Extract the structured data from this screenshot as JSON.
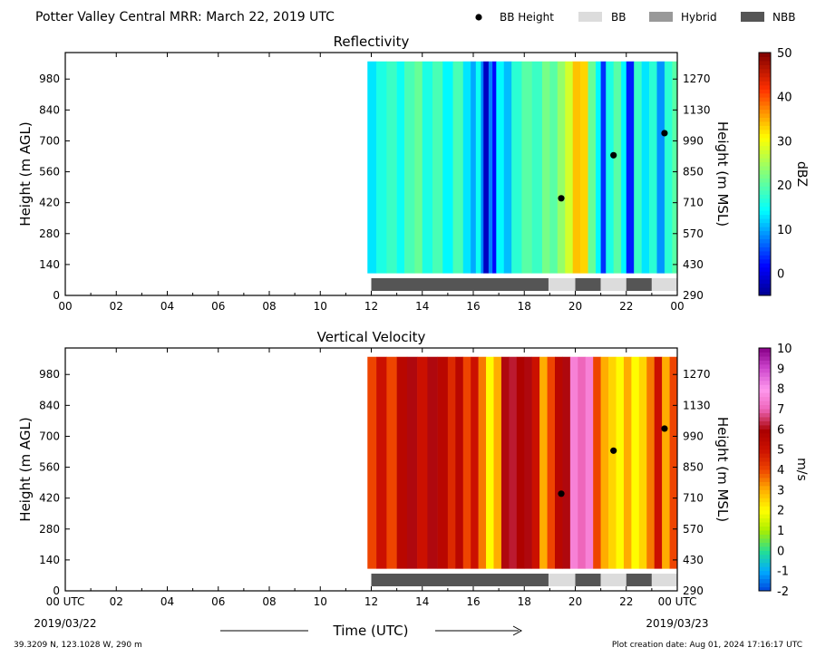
{
  "header": {
    "title": "Potter Valley Central MRR:  March 22, 2019 UTC",
    "legend": [
      {
        "label": "BB Height",
        "kind": "dot",
        "color": "#000000"
      },
      {
        "label": "BB",
        "kind": "box",
        "color": "#dcdcdc"
      },
      {
        "label": "Hybrid",
        "kind": "box",
        "color": "#999999"
      },
      {
        "label": "NBB",
        "kind": "box",
        "color": "#555555"
      }
    ]
  },
  "footer": {
    "location": "39.3209 N, 123.1028 W, 290 m",
    "created": "Plot creation date: Aug 01, 2024 17:16:17 UTC",
    "xlabel": "Time (UTC)",
    "start_tick": "00 UTC",
    "start_date": "2019/03/22",
    "end_tick": "00 UTC",
    "end_date": "2019/03/23"
  },
  "chart_data": [
    {
      "type": "heatmap",
      "title": "Reflectivity",
      "xlabel": "",
      "ylabel": "Height (m AGL)",
      "ylabel_right": "Height (m MSL)",
      "xlim": [
        0,
        24
      ],
      "ylim": [
        0,
        1100
      ],
      "x_ticks": [
        "00",
        "02",
        "04",
        "06",
        "08",
        "10",
        "12",
        "14",
        "16",
        "18",
        "20",
        "22",
        "00"
      ],
      "y_ticks": [
        0,
        140,
        280,
        420,
        560,
        700,
        840,
        980
      ],
      "y_ticks_right": [
        290,
        430,
        570,
        710,
        850,
        990,
        1130,
        1270
      ],
      "data_extent": {
        "x": [
          11.85,
          24
        ],
        "y": [
          100,
          1060
        ]
      },
      "colorbar": {
        "label": "dBZ",
        "range": [
          -5,
          50
        ],
        "ticks": [
          0,
          10,
          20,
          30,
          40,
          50
        ],
        "colormap": "jet"
      },
      "field": [
        {
          "x": 11.85,
          "v": 13
        },
        {
          "x": 12.2,
          "v": 16
        },
        {
          "x": 12.6,
          "v": 18
        },
        {
          "x": 13.0,
          "v": 15
        },
        {
          "x": 13.3,
          "v": 19
        },
        {
          "x": 13.7,
          "v": 21
        },
        {
          "x": 14.0,
          "v": 16
        },
        {
          "x": 14.4,
          "v": 19
        },
        {
          "x": 14.8,
          "v": 14
        },
        {
          "x": 15.2,
          "v": 19
        },
        {
          "x": 15.6,
          "v": 13
        },
        {
          "x": 15.9,
          "v": 10
        },
        {
          "x": 16.1,
          "v": 15
        },
        {
          "x": 16.3,
          "v": 8
        },
        {
          "x": 16.4,
          "v": -2
        },
        {
          "x": 16.6,
          "v": 8
        },
        {
          "x": 16.75,
          "v": 2
        },
        {
          "x": 16.9,
          "v": 14
        },
        {
          "x": 17.2,
          "v": 11
        },
        {
          "x": 17.5,
          "v": 17
        },
        {
          "x": 17.9,
          "v": 20
        },
        {
          "x": 18.3,
          "v": 18
        },
        {
          "x": 18.7,
          "v": 22
        },
        {
          "x": 19.0,
          "v": 20
        },
        {
          "x": 19.3,
          "v": 24
        },
        {
          "x": 19.6,
          "v": 28
        },
        {
          "x": 19.9,
          "v": 34
        },
        {
          "x": 20.2,
          "v": 33
        },
        {
          "x": 20.5,
          "v": 21
        },
        {
          "x": 20.8,
          "v": 14
        },
        {
          "x": 21.0,
          "v": 4
        },
        {
          "x": 21.2,
          "v": 16
        },
        {
          "x": 21.5,
          "v": 20
        },
        {
          "x": 21.8,
          "v": 14
        },
        {
          "x": 22.0,
          "v": 3
        },
        {
          "x": 22.3,
          "v": 18
        },
        {
          "x": 22.6,
          "v": 13
        },
        {
          "x": 22.9,
          "v": 17
        },
        {
          "x": 23.2,
          "v": 9
        },
        {
          "x": 23.5,
          "v": 17
        },
        {
          "x": 23.8,
          "v": 20
        },
        {
          "x": 24.0,
          "v": 20
        }
      ],
      "bb_height": [
        {
          "x": 19.45,
          "y": 440
        },
        {
          "x": 21.5,
          "y": 635
        },
        {
          "x": 23.5,
          "y": 735
        }
      ],
      "bb_type": [
        {
          "from": 12.0,
          "to": 18.95,
          "type": "NBB"
        },
        {
          "from": 18.95,
          "to": 20.0,
          "type": "BB"
        },
        {
          "from": 20.0,
          "to": 21.0,
          "type": "NBB"
        },
        {
          "from": 21.0,
          "to": 22.0,
          "type": "BB"
        },
        {
          "from": 22.0,
          "to": 23.0,
          "type": "NBB"
        },
        {
          "from": 23.0,
          "to": 24.0,
          "type": "BB"
        }
      ]
    },
    {
      "type": "heatmap",
      "title": "Vertical Velocity",
      "xlabel": "Time (UTC)",
      "ylabel": "Height (m AGL)",
      "ylabel_right": "Height (m MSL)",
      "xlim": [
        0,
        24
      ],
      "ylim": [
        0,
        1100
      ],
      "x_ticks": [
        "00 UTC",
        "02",
        "04",
        "06",
        "08",
        "10",
        "12",
        "14",
        "16",
        "18",
        "20",
        "22",
        "00 UTC"
      ],
      "y_ticks": [
        0,
        140,
        280,
        420,
        560,
        700,
        840,
        980
      ],
      "y_ticks_right": [
        290,
        430,
        570,
        710,
        850,
        990,
        1130,
        1270
      ],
      "data_extent": {
        "x": [
          11.85,
          24
        ],
        "y": [
          100,
          1060
        ]
      },
      "colorbar": {
        "label": "m/s",
        "range": [
          -2,
          10
        ],
        "ticks": [
          -2,
          -1,
          0,
          1,
          2,
          3,
          4,
          5,
          6,
          7,
          8,
          9,
          10
        ],
        "colormap": "velocity"
      },
      "field": [
        {
          "x": 11.85,
          "v": 4
        },
        {
          "x": 12.2,
          "v": 5
        },
        {
          "x": 12.6,
          "v": 4
        },
        {
          "x": 13.0,
          "v": 5.5
        },
        {
          "x": 13.4,
          "v": 6
        },
        {
          "x": 13.8,
          "v": 5
        },
        {
          "x": 14.2,
          "v": 6
        },
        {
          "x": 14.6,
          "v": 5.5
        },
        {
          "x": 15.0,
          "v": 4.5
        },
        {
          "x": 15.3,
          "v": 5.5
        },
        {
          "x": 15.6,
          "v": 4
        },
        {
          "x": 15.9,
          "v": 5
        },
        {
          "x": 16.2,
          "v": 3.5
        },
        {
          "x": 16.5,
          "v": 2
        },
        {
          "x": 16.8,
          "v": 3
        },
        {
          "x": 17.1,
          "v": 6
        },
        {
          "x": 17.4,
          "v": 6.2
        },
        {
          "x": 17.7,
          "v": 5.8
        },
        {
          "x": 18.0,
          "v": 6
        },
        {
          "x": 18.3,
          "v": 5
        },
        {
          "x": 18.6,
          "v": 3
        },
        {
          "x": 18.9,
          "v": 4
        },
        {
          "x": 19.2,
          "v": 5.5
        },
        {
          "x": 19.5,
          "v": 6
        },
        {
          "x": 19.8,
          "v": 7.5
        },
        {
          "x": 20.1,
          "v": 7
        },
        {
          "x": 20.4,
          "v": 7.5
        },
        {
          "x": 20.7,
          "v": 4
        },
        {
          "x": 21.0,
          "v": 3
        },
        {
          "x": 21.3,
          "v": 2.5
        },
        {
          "x": 21.6,
          "v": 2
        },
        {
          "x": 21.9,
          "v": 3
        },
        {
          "x": 22.2,
          "v": 2
        },
        {
          "x": 22.5,
          "v": 2.5
        },
        {
          "x": 22.8,
          "v": 3.5
        },
        {
          "x": 23.1,
          "v": 5
        },
        {
          "x": 23.4,
          "v": 3
        },
        {
          "x": 23.7,
          "v": 4
        },
        {
          "x": 24.0,
          "v": 2
        }
      ],
      "bb_height": [
        {
          "x": 19.45,
          "y": 440
        },
        {
          "x": 21.5,
          "y": 635
        },
        {
          "x": 23.5,
          "y": 735
        }
      ],
      "bb_type": [
        {
          "from": 12.0,
          "to": 18.95,
          "type": "NBB"
        },
        {
          "from": 18.95,
          "to": 20.0,
          "type": "BB"
        },
        {
          "from": 20.0,
          "to": 21.0,
          "type": "NBB"
        },
        {
          "from": 21.0,
          "to": 22.0,
          "type": "BB"
        },
        {
          "from": 22.0,
          "to": 23.0,
          "type": "NBB"
        },
        {
          "from": 23.0,
          "to": 24.0,
          "type": "BB"
        }
      ]
    }
  ]
}
